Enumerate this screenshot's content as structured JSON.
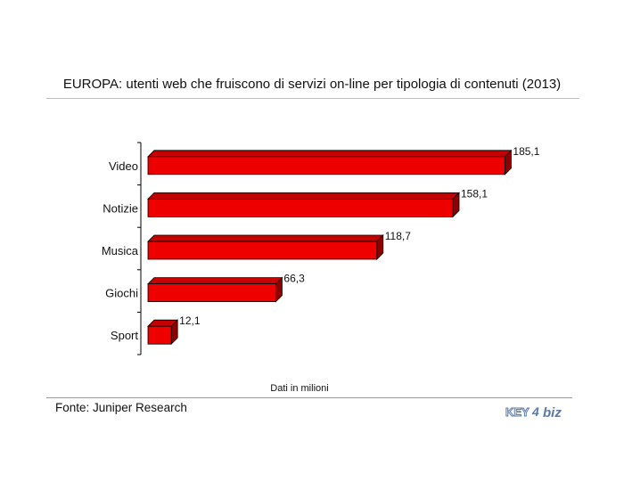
{
  "chart_data": {
    "type": "bar",
    "orientation": "horizontal",
    "title": "EUROPA: utenti web che fruiscono di servizi on-line per tipologia di contenuti (2013)",
    "categories": [
      "Video",
      "Notizie",
      "Musica",
      "Giochi",
      "Sport"
    ],
    "values": [
      185.1,
      158.1,
      118.7,
      66.3,
      12.1
    ],
    "data_labels": [
      "185,1",
      "158,1",
      "118,7",
      "66,3",
      "12,1"
    ],
    "xlabel": "Dati in milioni",
    "ylabel": "",
    "xlim": [
      0,
      190
    ],
    "grid": false,
    "bar_color": "#ee0000",
    "bar_dark_color": "#8f0000"
  },
  "footer": {
    "source": "Fonte: Juniper Research",
    "logo_text": "KEY4biz"
  },
  "colors": {
    "rule": "#bdbdbd",
    "logo_blue": "#5a79a8"
  }
}
